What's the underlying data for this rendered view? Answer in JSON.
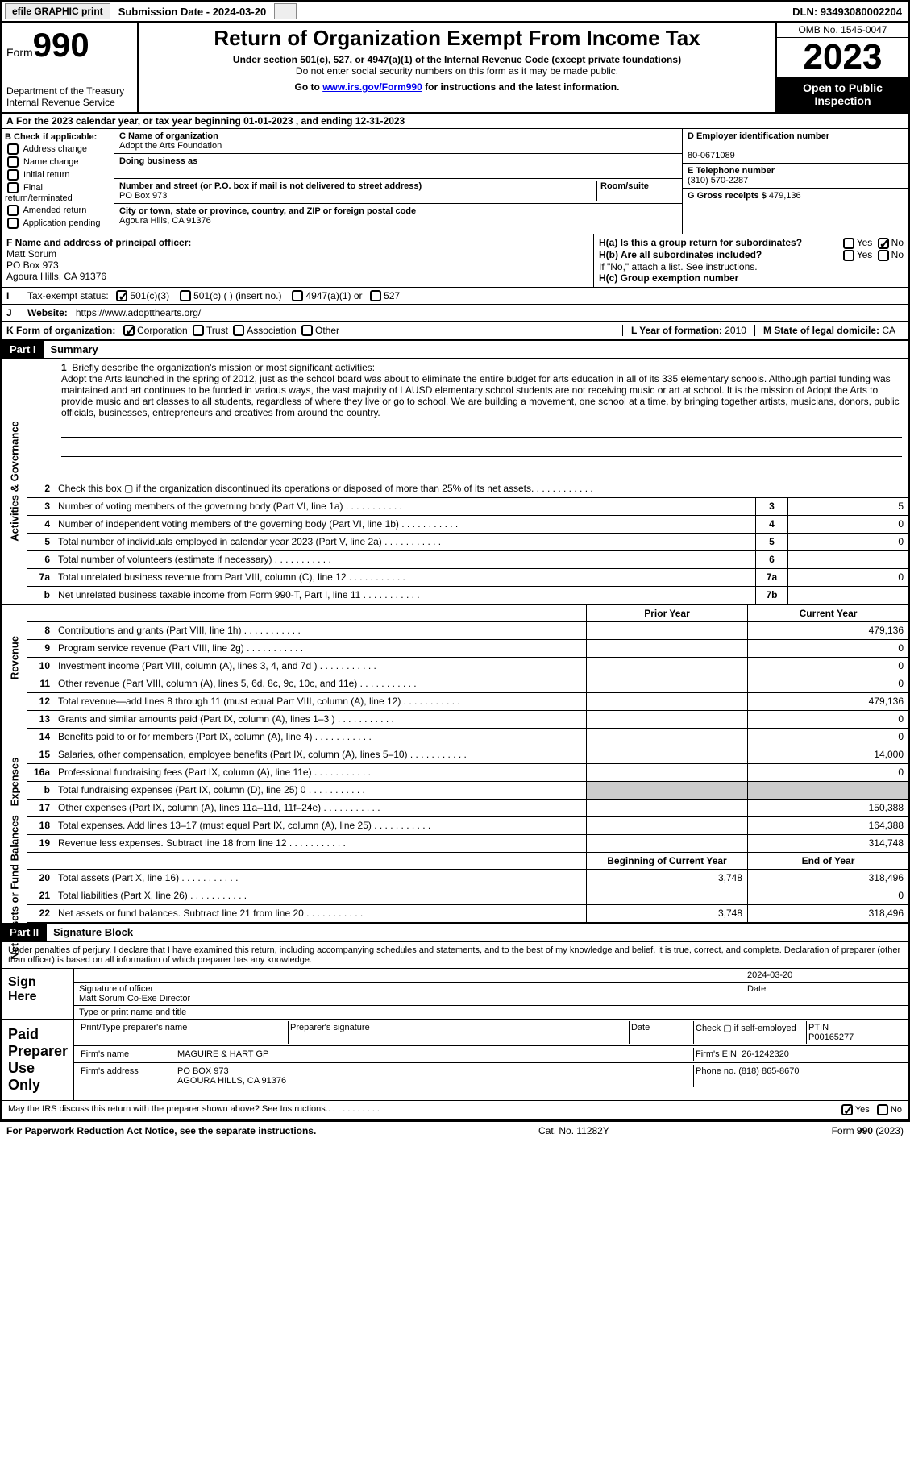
{
  "topbar": {
    "efile": "efile GRAPHIC print",
    "submission": "Submission Date - 2024-03-20",
    "dln": "DLN: 93493080002204"
  },
  "header": {
    "form_label": "Form",
    "form_number": "990",
    "dept": "Department of the Treasury",
    "irs": "Internal Revenue Service",
    "title": "Return of Organization Exempt From Income Tax",
    "sub1": "Under section 501(c), 527, or 4947(a)(1) of the Internal Revenue Code (except private foundations)",
    "sub2": "Do not enter social security numbers on this form as it may be made public.",
    "sub3_pre": "Go to ",
    "sub3_url": "www.irs.gov/Form990",
    "sub3_post": " for instructions and the latest information.",
    "omb": "OMB No. 1545-0047",
    "year": "2023",
    "open": "Open to Public Inspection"
  },
  "row_a": "For the 2023 calendar year, or tax year beginning 01-01-2023    , and ending 12-31-2023",
  "col_b": {
    "header": "B Check if applicable:",
    "items": [
      "Address change",
      "Name change",
      "Initial return",
      "Final return/terminated",
      "Amended return",
      "Application pending"
    ]
  },
  "col_c": {
    "name_label": "C Name of organization",
    "name": "Adopt the Arts Foundation",
    "dba_label": "Doing business as",
    "dba": "",
    "street_label": "Number and street (or P.O. box if mail is not delivered to street address)",
    "room_label": "Room/suite",
    "street": "PO Box 973",
    "city_label": "City or town, state or province, country, and ZIP or foreign postal code",
    "city": "Agoura Hills, CA  91376"
  },
  "col_d": {
    "ein_label": "D Employer identification number",
    "ein": "80-0671089",
    "phone_label": "E Telephone number",
    "phone": "(310) 570-2287",
    "gross_label": "G Gross receipts $",
    "gross": "479,136"
  },
  "row_f": {
    "label": "F  Name and address of principal officer:",
    "name": "Matt Sorum",
    "addr1": "PO Box 973",
    "addr2": "Agoura Hills, CA  91376"
  },
  "row_h": {
    "ha": "H(a)  Is this a group return for subordinates?",
    "hb": "H(b)  Are all subordinates included?",
    "hb_note": "If \"No,\" attach a list. See instructions.",
    "hc": "H(c)  Group exemption number",
    "yes": "Yes",
    "no": "No"
  },
  "row_i": {
    "label": "Tax-exempt status:",
    "opts": [
      "501(c)(3)",
      "501(c) (  ) (insert no.)",
      "4947(a)(1) or",
      "527"
    ]
  },
  "row_j": {
    "label": "Website:",
    "url": "https://www.adoptthearts.org/"
  },
  "row_k": {
    "label": "K Form of organization:",
    "opts": [
      "Corporation",
      "Trust",
      "Association",
      "Other"
    ],
    "l_label": "L Year of formation:",
    "l_val": "2010",
    "m_label": "M State of legal domicile:",
    "m_val": "CA"
  },
  "part1": {
    "num": "Part I",
    "title": "Summary"
  },
  "mission": {
    "num": "1",
    "label": "Briefly describe the organization's mission or most significant activities:",
    "text": "Adopt the Arts launched in the spring of 2012, just as the school board was about to eliminate the entire budget for arts education in all of its 335 elementary schools. Although partial funding was maintained and art continues to be funded in various ways, the vast majority of LAUSD elementary school students are not receiving music or art at school. It is the mission of Adopt the Arts to provide music and art classes to all students, regardless of where they live or go to school. We are building a movement, one school at a time, by bringing together artists, musicians, donors, public officials, businesses, entrepreneurs and creatives from around the country."
  },
  "side_labels": {
    "gov": "Activities & Governance",
    "rev": "Revenue",
    "exp": "Expenses",
    "net": "Net Assets or Fund Balances"
  },
  "gov_rows": [
    {
      "n": "2",
      "d": "Check this box ▢ if the organization discontinued its operations or disposed of more than 25% of its net assets."
    },
    {
      "n": "3",
      "d": "Number of voting members of the governing body (Part VI, line 1a)",
      "c": "3",
      "v": "5"
    },
    {
      "n": "4",
      "d": "Number of independent voting members of the governing body (Part VI, line 1b)",
      "c": "4",
      "v": "0"
    },
    {
      "n": "5",
      "d": "Total number of individuals employed in calendar year 2023 (Part V, line 2a)",
      "c": "5",
      "v": "0"
    },
    {
      "n": "6",
      "d": "Total number of volunteers (estimate if necessary)",
      "c": "6",
      "v": ""
    },
    {
      "n": "7a",
      "d": "Total unrelated business revenue from Part VIII, column (C), line 12",
      "c": "7a",
      "v": "0"
    },
    {
      "n": "b",
      "d": "Net unrelated business taxable income from Form 990-T, Part I, line 11",
      "c": "7b",
      "v": ""
    }
  ],
  "col_headers": {
    "prior": "Prior Year",
    "current": "Current Year",
    "begin": "Beginning of Current Year",
    "end": "End of Year"
  },
  "rev_rows": [
    {
      "n": "8",
      "d": "Contributions and grants (Part VIII, line 1h)",
      "p": "",
      "c": "479,136"
    },
    {
      "n": "9",
      "d": "Program service revenue (Part VIII, line 2g)",
      "p": "",
      "c": "0"
    },
    {
      "n": "10",
      "d": "Investment income (Part VIII, column (A), lines 3, 4, and 7d )",
      "p": "",
      "c": "0"
    },
    {
      "n": "11",
      "d": "Other revenue (Part VIII, column (A), lines 5, 6d, 8c, 9c, 10c, and 11e)",
      "p": "",
      "c": "0"
    },
    {
      "n": "12",
      "d": "Total revenue—add lines 8 through 11 (must equal Part VIII, column (A), line 12)",
      "p": "",
      "c": "479,136"
    }
  ],
  "exp_rows": [
    {
      "n": "13",
      "d": "Grants and similar amounts paid (Part IX, column (A), lines 1–3 )",
      "p": "",
      "c": "0"
    },
    {
      "n": "14",
      "d": "Benefits paid to or for members (Part IX, column (A), line 4)",
      "p": "",
      "c": "0"
    },
    {
      "n": "15",
      "d": "Salaries, other compensation, employee benefits (Part IX, column (A), lines 5–10)",
      "p": "",
      "c": "14,000"
    },
    {
      "n": "16a",
      "d": "Professional fundraising fees (Part IX, column (A), line 11e)",
      "p": "",
      "c": "0"
    },
    {
      "n": "b",
      "d": "Total fundraising expenses (Part IX, column (D), line 25) 0",
      "p": "shade",
      "c": "shade"
    },
    {
      "n": "17",
      "d": "Other expenses (Part IX, column (A), lines 11a–11d, 11f–24e)",
      "p": "",
      "c": "150,388"
    },
    {
      "n": "18",
      "d": "Total expenses. Add lines 13–17 (must equal Part IX, column (A), line 25)",
      "p": "",
      "c": "164,388"
    },
    {
      "n": "19",
      "d": "Revenue less expenses. Subtract line 18 from line 12",
      "p": "",
      "c": "314,748"
    }
  ],
  "net_rows": [
    {
      "n": "20",
      "d": "Total assets (Part X, line 16)",
      "p": "3,748",
      "c": "318,496"
    },
    {
      "n": "21",
      "d": "Total liabilities (Part X, line 26)",
      "p": "",
      "c": "0"
    },
    {
      "n": "22",
      "d": "Net assets or fund balances. Subtract line 21 from line 20",
      "p": "3,748",
      "c": "318,496"
    }
  ],
  "part2": {
    "num": "Part II",
    "title": "Signature Block"
  },
  "sig": {
    "penalty": "Under penalties of perjury, I declare that I have examined this return, including accompanying schedules and statements, and to the best of my knowledge and belief, it is true, correct, and complete. Declaration of preparer (other than officer) is based on all information of which preparer has any knowledge.",
    "sign_here": "Sign Here",
    "sig_officer": "Signature of officer",
    "officer": "Matt Sorum  Co-Exe Director",
    "type_title": "Type or print name and title",
    "date_lbl": "Date",
    "date": "2024-03-20",
    "paid": "Paid Preparer Use Only",
    "prep_name_lbl": "Print/Type preparer's name",
    "prep_sig_lbl": "Preparer's signature",
    "check_self": "Check ▢ if self-employed",
    "ptin_lbl": "PTIN",
    "ptin": "P00165277",
    "firm_name_lbl": "Firm's name",
    "firm_name": "MAGUIRE & HART GP",
    "firm_ein_lbl": "Firm's EIN",
    "firm_ein": "26-1242320",
    "firm_addr_lbl": "Firm's address",
    "firm_addr": "PO BOX 973",
    "firm_city": "AGOURA HILLS, CA  91376",
    "phone_lbl": "Phone no.",
    "phone": "(818) 865-8670",
    "discuss": "May the IRS discuss this return with the preparer shown above? See Instructions."
  },
  "footer": {
    "paperwork": "For Paperwork Reduction Act Notice, see the separate instructions.",
    "cat": "Cat. No. 11282Y",
    "form": "Form 990 (2023)"
  }
}
